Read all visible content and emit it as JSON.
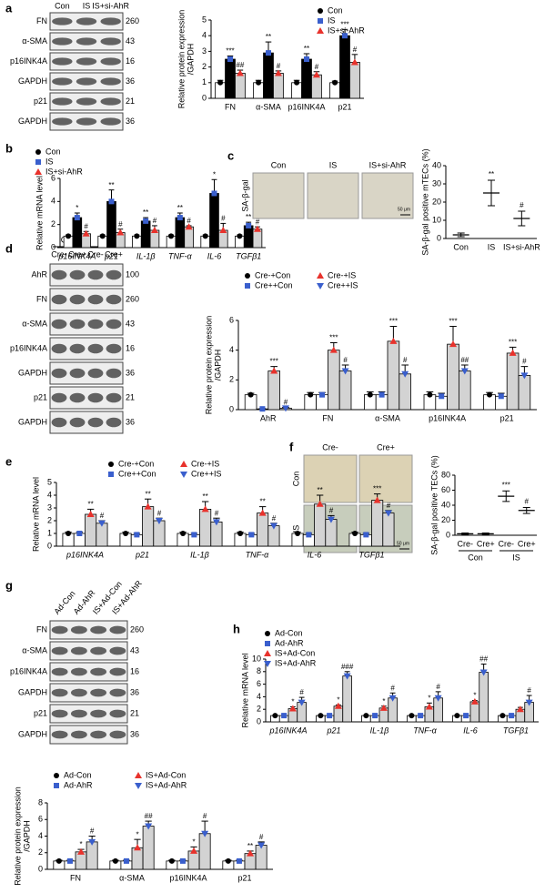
{
  "panels": [
    "a",
    "b",
    "c",
    "d",
    "e",
    "f",
    "g",
    "h"
  ],
  "blots": [
    {
      "lanes": [
        "Con",
        "IS",
        "IS+si-AhR"
      ],
      "rows": [
        {
          "protein": "FN",
          "kda": 260
        },
        {
          "protein": "α-SMA",
          "kda": 43
        },
        {
          "protein": "p16INK4A",
          "kda": 16
        },
        {
          "protein": "GAPDH",
          "kda": 36
        },
        {
          "protein": "p21",
          "kda": 21
        },
        {
          "protein": "GAPDH",
          "kda": 36
        }
      ]
    },
    {
      "groups": [
        "Con",
        "IS"
      ],
      "lanes": [
        "Cre-",
        "Cre+",
        "Cre-",
        "Cre+"
      ],
      "rows": [
        {
          "protein": "AhR",
          "kda": 100
        },
        {
          "protein": "FN",
          "kda": 260
        },
        {
          "protein": "α-SMA",
          "kda": 43
        },
        {
          "protein": "p16INK4A",
          "kda": 16
        },
        {
          "protein": "GAPDH",
          "kda": 36
        },
        {
          "protein": "p21",
          "kda": 21
        },
        {
          "protein": "GAPDH",
          "kda": 36
        }
      ]
    },
    {
      "lanes": [
        "Ad-Con",
        "Ad-AhR",
        "IS+Ad-Con",
        "IS+Ad-AhR"
      ],
      "rows": [
        {
          "protein": "FN",
          "kda": 260
        },
        {
          "protein": "α-SMA",
          "kda": 43
        },
        {
          "protein": "p16INK4A",
          "kda": 16
        },
        {
          "protein": "GAPDH",
          "kda": 36
        },
        {
          "protein": "p21",
          "kda": 21
        },
        {
          "protein": "GAPDH",
          "kda": 36
        }
      ]
    }
  ],
  "micrographs": [
    {
      "columns": [
        "Con",
        "IS",
        "IS+si-AhR"
      ],
      "rows": [
        "SA-β-gal"
      ],
      "scale": "50 μm"
    },
    {
      "columns": [
        "Cre-",
        "Cre+"
      ],
      "rows": [
        "Con",
        "IS"
      ],
      "scale": "50 μm"
    }
  ],
  "chart_data": [
    {
      "type": "bar",
      "ylabel": [
        "Relative protein expression",
        "/GAPDH"
      ],
      "categories": [
        "FN",
        "α-SMA",
        "p16INK4A",
        "p21"
      ],
      "ylim": [
        0,
        5
      ],
      "yticks": [
        0,
        1,
        2,
        3,
        4,
        5
      ],
      "series": [
        {
          "name": "Con",
          "color": "#000000",
          "fill": "#ffffff",
          "marker": "circle",
          "values": [
            1,
            1,
            1,
            1
          ],
          "errors": [
            0.15,
            0.15,
            0.15,
            0.1
          ],
          "sig": [
            null,
            null,
            null,
            null
          ]
        },
        {
          "name": "IS",
          "color": "#3a5fcd",
          "fill": "#000000",
          "marker": "square",
          "values": [
            2.5,
            2.9,
            2.5,
            4.0
          ],
          "errors": [
            0.2,
            0.7,
            0.35,
            0.4
          ],
          "sig": [
            "***",
            "**",
            "**",
            "***"
          ]
        },
        {
          "name": "IS+si-AhR",
          "color": "#e8322c",
          "fill": "#d3d3d3",
          "marker": "triangle",
          "values": [
            1.6,
            1.6,
            1.5,
            2.3
          ],
          "errors": [
            0.2,
            0.15,
            0.2,
            0.5
          ],
          "sig": [
            "##",
            "#",
            "#",
            "#"
          ]
        }
      ]
    },
    {
      "type": "bar",
      "ylabel": [
        "Relative mRNA level"
      ],
      "xlabel_italic": true,
      "categories": [
        "p16INK4A",
        "p21",
        "IL-1β",
        "TNF-α",
        "IL-6",
        "TGFβ1"
      ],
      "ylim": [
        0,
        6
      ],
      "yticks": [
        0,
        2,
        4,
        6
      ],
      "series": [
        {
          "name": "Con",
          "color": "#000000",
          "fill": "#ffffff",
          "marker": "circle",
          "values": [
            1,
            1,
            1,
            1,
            1,
            1
          ],
          "errors": [
            0.1,
            0.1,
            0.1,
            0.1,
            0.1,
            0.1
          ],
          "sig": [
            null,
            null,
            null,
            null,
            null,
            null
          ]
        },
        {
          "name": "IS",
          "color": "#3a5fcd",
          "fill": "#000000",
          "marker": "square",
          "values": [
            2.6,
            4.0,
            2.3,
            2.6,
            4.7,
            1.9
          ],
          "errors": [
            0.4,
            1.0,
            0.3,
            0.4,
            1.2,
            0.3
          ],
          "sig": [
            "*",
            "**",
            "**",
            "**",
            "*",
            "**"
          ]
        },
        {
          "name": "IS+si-AhR",
          "color": "#e8322c",
          "fill": "#d3d3d3",
          "marker": "triangle",
          "values": [
            1.2,
            1.3,
            1.5,
            1.8,
            1.5,
            1.6
          ],
          "errors": [
            0.2,
            0.3,
            0.4,
            0.1,
            0.6,
            0.2
          ],
          "sig": [
            "#",
            "#",
            "#",
            "#",
            "#",
            "#"
          ]
        }
      ]
    },
    {
      "type": "dotplot",
      "ylabel": [
        "SA-β-gal positive mTECs (%)"
      ],
      "categories": [
        "Con",
        "IS",
        "IS+si-AhR"
      ],
      "ylim": [
        0,
        40
      ],
      "yticks": [
        0,
        10,
        20,
        30,
        40
      ],
      "color": "#000000",
      "values": [
        2,
        25,
        11
      ],
      "errors": [
        1,
        7,
        4
      ],
      "sig": [
        null,
        "**",
        "#"
      ]
    },
    {
      "type": "bar",
      "ylabel": [
        "Relative protein expression",
        "/GAPDH"
      ],
      "categories": [
        "AhR",
        "FN",
        "α-SMA",
        "p16INK4A",
        "p21"
      ],
      "ylim": [
        0,
        6
      ],
      "yticks": [
        0,
        2,
        4,
        6
      ],
      "series": [
        {
          "name": "Cre-+Con",
          "color": "#000000",
          "fill": "#ffffff",
          "marker": "circle",
          "values": [
            1,
            1,
            1,
            1,
            1
          ],
          "errors": [
            0.1,
            0.15,
            0.2,
            0.2,
            0.15
          ],
          "sig": [
            null,
            null,
            null,
            null,
            null
          ]
        },
        {
          "name": "Cre++Con",
          "color": "#3a5fcd",
          "fill": "#ffffff",
          "marker": "square",
          "values": [
            0.05,
            1.0,
            1.0,
            0.9,
            0.9
          ],
          "errors": [
            0.02,
            0.15,
            0.2,
            0.2,
            0.2
          ],
          "sig": [
            null,
            null,
            null,
            null,
            null
          ]
        },
        {
          "name": "Cre-+IS",
          "color": "#e8322c",
          "fill": "#d3d3d3",
          "marker": "triangle",
          "values": [
            2.6,
            4.0,
            4.6,
            4.4,
            3.8
          ],
          "errors": [
            0.3,
            0.5,
            1.0,
            1.2,
            0.4
          ],
          "sig": [
            "***",
            "***",
            "***",
            "***",
            "***"
          ]
        },
        {
          "name": "Cre++IS",
          "color": "#3a5fcd",
          "fill": "#d3d3d3",
          "marker": "triangle-down",
          "values": [
            0.1,
            2.6,
            2.4,
            2.6,
            2.3
          ],
          "errors": [
            0.05,
            0.4,
            0.6,
            0.4,
            0.6
          ],
          "sig": [
            "#",
            "#",
            "#",
            "##",
            "#"
          ]
        }
      ]
    },
    {
      "type": "bar",
      "ylabel": [
        "Relative mRNA level"
      ],
      "xlabel_italic": true,
      "categories": [
        "p16INK4A",
        "p21",
        "IL-1β",
        "TNF-α",
        "IL-6",
        "TGFβ1"
      ],
      "ylim": [
        0,
        5
      ],
      "yticks": [
        0,
        1,
        2,
        3,
        4,
        5
      ],
      "series": [
        {
          "name": "Cre-+Con",
          "color": "#000000",
          "fill": "#ffffff",
          "marker": "circle",
          "values": [
            1,
            1,
            1,
            1,
            1,
            1
          ],
          "errors": [
            0.1,
            0.1,
            0.1,
            0.1,
            0.1,
            0.1
          ],
          "sig": [
            null,
            null,
            null,
            null,
            null,
            null
          ]
        },
        {
          "name": "Cre++Con",
          "color": "#3a5fcd",
          "fill": "#ffffff",
          "marker": "square",
          "values": [
            1.0,
            0.9,
            0.9,
            0.9,
            0.9,
            0.9
          ],
          "errors": [
            0.1,
            0.1,
            0.1,
            0.1,
            0.1,
            0.1
          ],
          "sig": [
            null,
            null,
            null,
            null,
            null,
            null
          ]
        },
        {
          "name": "Cre-+IS",
          "color": "#e8322c",
          "fill": "#d3d3d3",
          "marker": "triangle",
          "values": [
            2.5,
            3.1,
            2.9,
            2.6,
            3.3,
            3.6
          ],
          "errors": [
            0.4,
            0.6,
            0.6,
            0.5,
            0.7,
            0.5
          ],
          "sig": [
            "**",
            "**",
            "**",
            "**",
            "**",
            "***"
          ]
        },
        {
          "name": "Cre++IS",
          "color": "#3a5fcd",
          "fill": "#d3d3d3",
          "marker": "triangle-down",
          "values": [
            1.8,
            2.0,
            1.9,
            1.6,
            2.1,
            2.6
          ],
          "errors": [
            0.2,
            0.2,
            0.3,
            0.2,
            0.3,
            0.2
          ],
          "sig": [
            "#",
            "#",
            "#",
            "#",
            "#",
            "#"
          ]
        }
      ]
    },
    {
      "type": "dotplot",
      "ylabel": [
        "SA-β-gal positive TECs (%)"
      ],
      "categories": [
        "Cre-",
        "Cre+",
        "Cre-",
        "Cre+"
      ],
      "groups": [
        "Con",
        "IS"
      ],
      "ylim": [
        0,
        80
      ],
      "yticks": [
        0,
        20,
        40,
        60,
        80
      ],
      "color": "#000000",
      "values": [
        2,
        2,
        52,
        33
      ],
      "errors": [
        1,
        1,
        7,
        4
      ],
      "sig": [
        null,
        null,
        "***",
        "#"
      ]
    },
    {
      "type": "bar",
      "ylabel": [
        "Relative protein expression",
        "/GAPDH"
      ],
      "categories": [
        "FN",
        "α-SMA",
        "p16INK4A",
        "p21"
      ],
      "ylim": [
        0,
        8
      ],
      "yticks": [
        0,
        2,
        4,
        6,
        8
      ],
      "series": [
        {
          "name": "Ad-Con",
          "color": "#000000",
          "fill": "#ffffff",
          "marker": "circle",
          "values": [
            1,
            1,
            1,
            1
          ],
          "errors": [
            0.1,
            0.1,
            0.1,
            0.1
          ],
          "sig": [
            null,
            null,
            null,
            null
          ]
        },
        {
          "name": "Ad-AhR",
          "color": "#3a5fcd",
          "fill": "#ffffff",
          "marker": "square",
          "values": [
            1.0,
            1.0,
            1.0,
            1.0
          ],
          "errors": [
            0.1,
            0.1,
            0.1,
            0.1
          ],
          "sig": [
            null,
            null,
            null,
            null
          ]
        },
        {
          "name": "IS+Ad-Con",
          "color": "#e8322c",
          "fill": "#d3d3d3",
          "marker": "triangle",
          "values": [
            2.1,
            2.6,
            2.2,
            1.9
          ],
          "errors": [
            0.3,
            1.0,
            0.5,
            0.3
          ],
          "sig": [
            "*",
            "*",
            "*",
            "**"
          ]
        },
        {
          "name": "IS+Ad-AhR",
          "color": "#3a5fcd",
          "fill": "#d3d3d3",
          "marker": "triangle-down",
          "values": [
            3.3,
            5.2,
            4.3,
            2.9
          ],
          "errors": [
            0.7,
            0.6,
            1.5,
            0.4
          ],
          "sig": [
            "#",
            "##",
            "#",
            "#"
          ]
        }
      ]
    },
    {
      "type": "bar",
      "ylabel": [
        "Relative mRNA level"
      ],
      "xlabel_italic": true,
      "categories": [
        "p16INK4A",
        "p21",
        "IL-1β",
        "TNF-α",
        "IL-6",
        "TGFβ1"
      ],
      "ylim": [
        0,
        10
      ],
      "yticks": [
        0,
        2,
        4,
        6,
        8,
        10
      ],
      "series": [
        {
          "name": "Ad-Con",
          "color": "#000000",
          "fill": "#ffffff",
          "marker": "circle",
          "values": [
            1,
            1,
            1,
            1,
            1,
            1
          ],
          "errors": [
            0.1,
            0.1,
            0.1,
            0.1,
            0.1,
            0.1
          ],
          "sig": [
            null,
            null,
            null,
            null,
            null,
            null
          ]
        },
        {
          "name": "Ad-AhR",
          "color": "#3a5fcd",
          "fill": "#ffffff",
          "marker": "square",
          "values": [
            1,
            1,
            1,
            1,
            1,
            1
          ],
          "errors": [
            0.1,
            0.1,
            0.1,
            0.1,
            0.1,
            0.1
          ],
          "sig": [
            null,
            null,
            null,
            null,
            null,
            null
          ]
        },
        {
          "name": "IS+Ad-Con",
          "color": "#e8322c",
          "fill": "#d3d3d3",
          "marker": "triangle",
          "values": [
            2.1,
            2.5,
            2.2,
            2.4,
            3.2,
            2.0
          ],
          "errors": [
            0.3,
            0.2,
            0.3,
            0.6,
            0.2,
            0.3
          ],
          "sig": [
            "*",
            "*",
            "*",
            "*",
            "*",
            null
          ]
        },
        {
          "name": "IS+Ad-AhR",
          "color": "#3a5fcd",
          "fill": "#d3d3d3",
          "marker": "triangle-down",
          "values": [
            3.1,
            7.3,
            3.8,
            3.8,
            7.9,
            3.1
          ],
          "errors": [
            0.8,
            0.7,
            0.8,
            1.0,
            1.3,
            1.1
          ],
          "sig": [
            "#",
            "###",
            "#",
            "#",
            "##",
            "#"
          ]
        }
      ]
    }
  ]
}
